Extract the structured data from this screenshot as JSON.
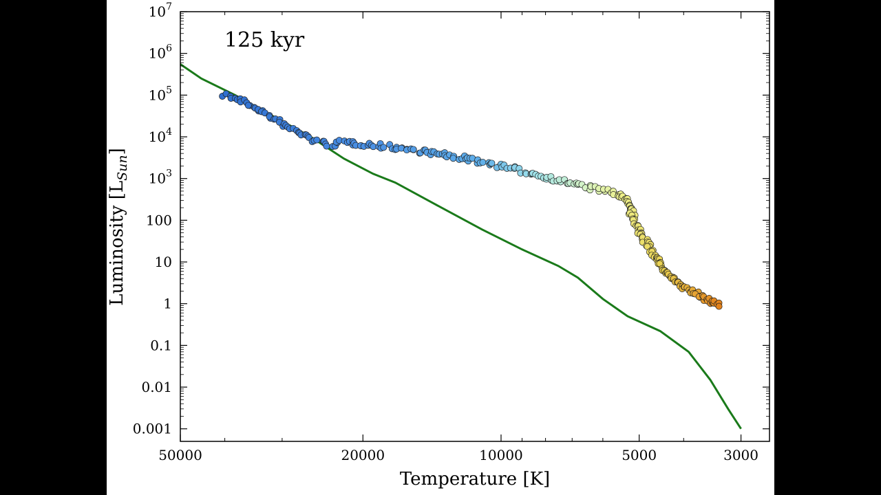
{
  "chart_data": {
    "type": "scatter",
    "annotation": "125 kyr",
    "xlabel": "Temperature [K]",
    "ylabel": "Luminosity [L",
    "ylabel_sub": "Sun",
    "ylabel_close": "]",
    "x_scale": "log",
    "x_reversed": true,
    "y_scale": "log",
    "xlim": [
      50000,
      2600
    ],
    "ylim": [
      0.0005,
      10000000
    ],
    "grid": false,
    "x_ticks": [
      {
        "value": 50000,
        "label": "50000"
      },
      {
        "value": 20000,
        "label": "20000"
      },
      {
        "value": 10000,
        "label": "10000"
      },
      {
        "value": 5000,
        "label": "5000"
      },
      {
        "value": 3000,
        "label": "3000"
      }
    ],
    "y_ticks": [
      {
        "value": 0.001,
        "label": "0.001"
      },
      {
        "value": 0.01,
        "label": "0.01"
      },
      {
        "value": 0.1,
        "label": "0.1"
      },
      {
        "value": 1,
        "label": "1"
      },
      {
        "value": 10,
        "label": "10"
      },
      {
        "value": 100,
        "label": "100"
      },
      {
        "value": 1000,
        "base": "10",
        "exp": "3"
      },
      {
        "value": 10000,
        "base": "10",
        "exp": "4"
      },
      {
        "value": 100000,
        "base": "10",
        "exp": "5"
      },
      {
        "value": 1000000,
        "base": "10",
        "exp": "6"
      },
      {
        "value": 10000000,
        "base": "10",
        "exp": "7"
      }
    ],
    "line_series": {
      "color": "#1a7a1a",
      "points": [
        [
          50000,
          550000
        ],
        [
          45000,
          250000
        ],
        [
          38000,
          100000
        ],
        [
          32000,
          35000
        ],
        [
          26000,
          10000
        ],
        [
          22000,
          3000
        ],
        [
          19000,
          1300
        ],
        [
          17000,
          800
        ],
        [
          14000,
          250
        ],
        [
          11000,
          60
        ],
        [
          9000,
          20
        ],
        [
          7500,
          8
        ],
        [
          6800,
          4.2
        ],
        [
          6000,
          1.3
        ],
        [
          5300,
          0.5
        ],
        [
          4500,
          0.22
        ],
        [
          3900,
          0.07
        ],
        [
          3500,
          0.015
        ],
        [
          3200,
          0.003
        ],
        [
          3000,
          0.001
        ]
      ]
    },
    "scatter_series": {
      "marker_edge_color": "#222222",
      "color_stops": [
        {
          "t": 40000,
          "color": "#2f6fd0"
        },
        {
          "t": 20000,
          "color": "#4a8fe4"
        },
        {
          "t": 11000,
          "color": "#5eaee9"
        },
        {
          "t": 8500,
          "color": "#9fe2ec"
        },
        {
          "t": 6500,
          "color": "#d8f4c4"
        },
        {
          "t": 5400,
          "color": "#eef08a"
        },
        {
          "t": 4400,
          "color": "#e9cf4e"
        },
        {
          "t": 3700,
          "color": "#e6a030"
        },
        {
          "t": 3300,
          "color": "#e07a18"
        }
      ],
      "track": [
        [
          40000,
          105000
        ],
        [
          36000,
          65000
        ],
        [
          33000,
          38000
        ],
        [
          30000,
          20000
        ],
        [
          27000,
          11000
        ],
        [
          25000,
          7500
        ],
        [
          23500,
          6500
        ],
        [
          22000,
          7400
        ],
        [
          20000,
          6800
        ],
        [
          17000,
          5500
        ],
        [
          14500,
          4300
        ],
        [
          12000,
          3000
        ],
        [
          10000,
          2000
        ],
        [
          8500,
          1300
        ],
        [
          7500,
          900
        ],
        [
          6600,
          650
        ],
        [
          6000,
          520
        ],
        [
          5600,
          420
        ],
        [
          5400,
          350
        ],
        [
          5200,
          150
        ],
        [
          5000,
          55
        ],
        [
          4700,
          18
        ],
        [
          4400,
          6
        ],
        [
          4100,
          3
        ],
        [
          3800,
          1.8
        ],
        [
          3600,
          1.3
        ],
        [
          3450,
          1.05
        ],
        [
          3350,
          0.95
        ]
      ]
    }
  }
}
